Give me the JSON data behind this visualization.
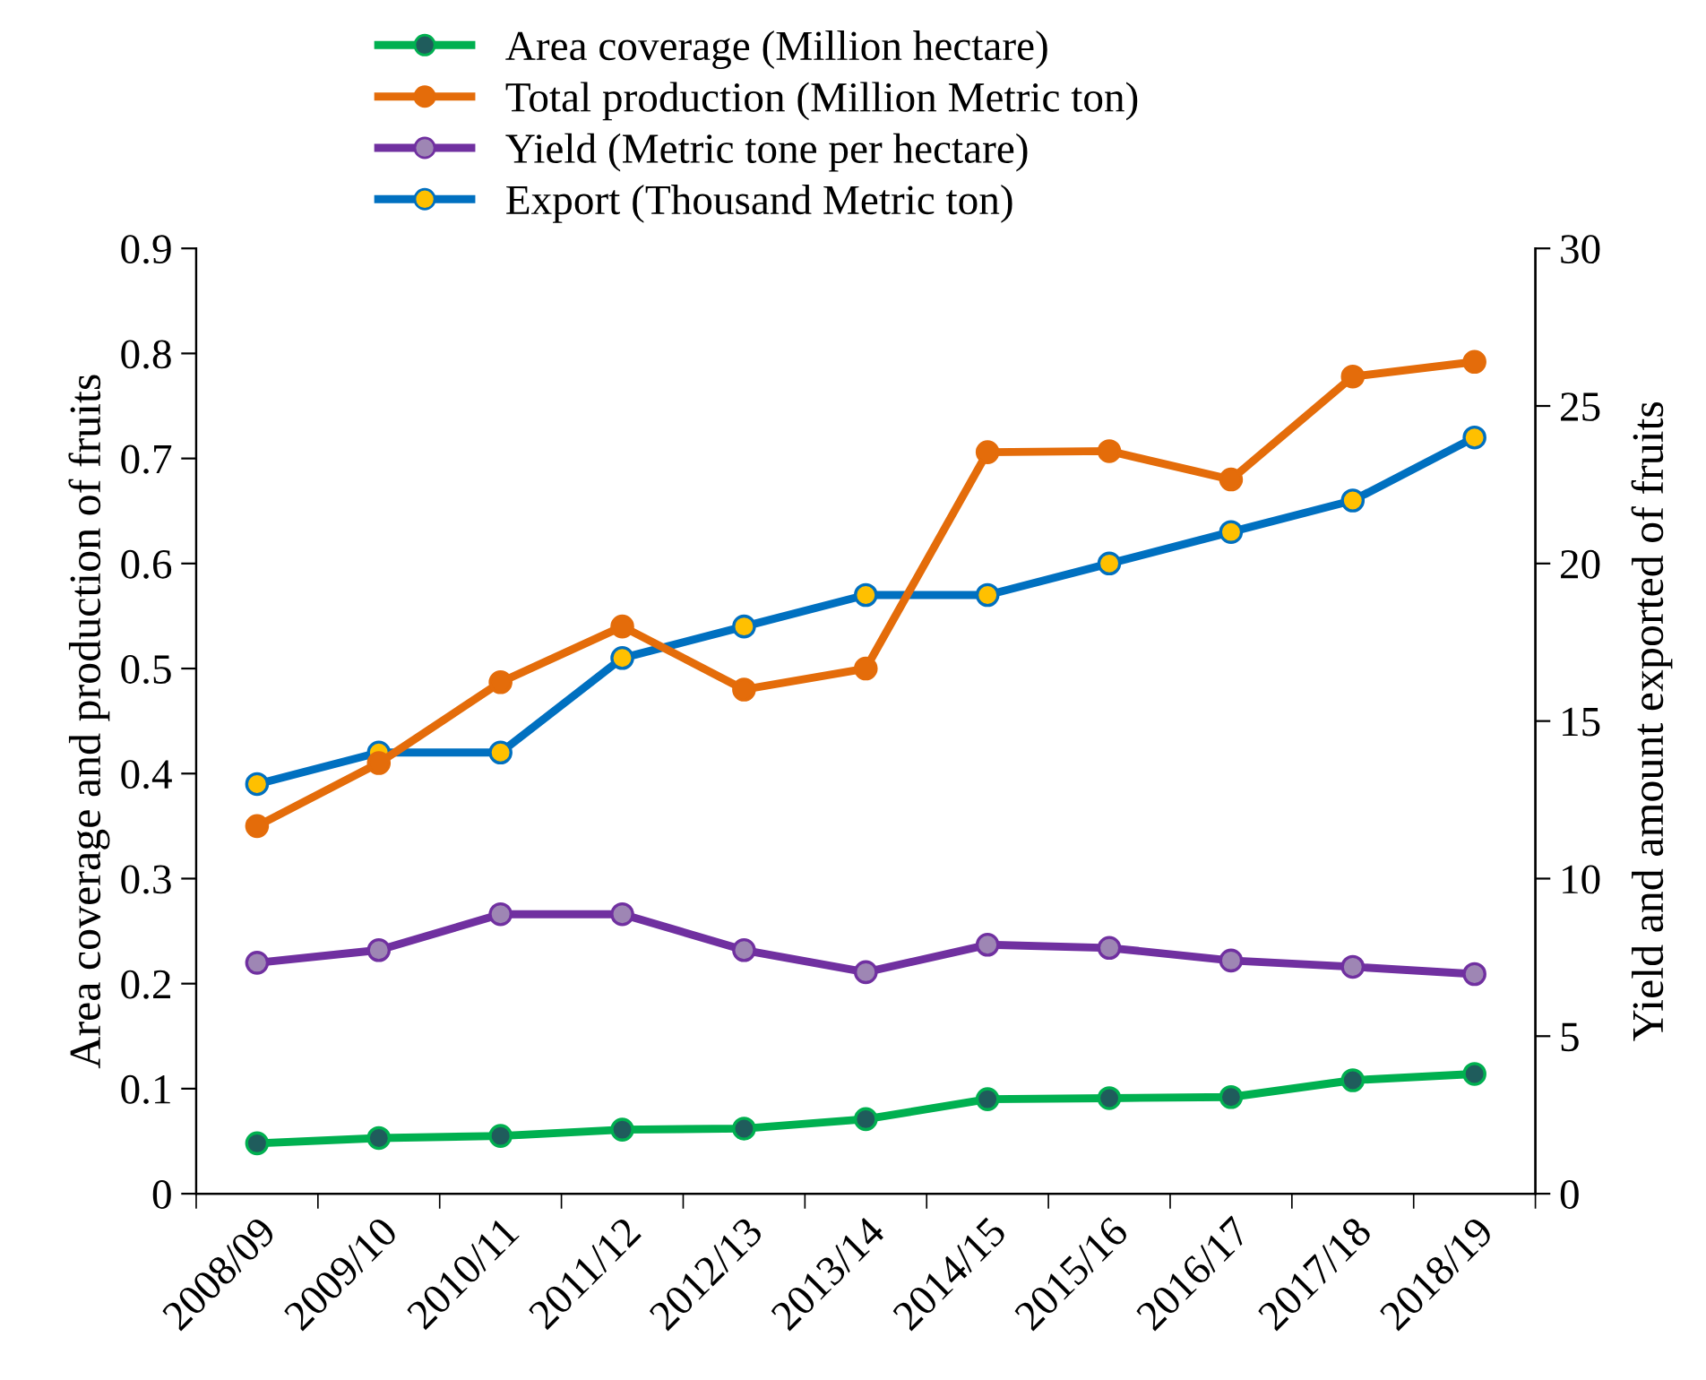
{
  "chart_data": {
    "type": "line",
    "categories": [
      "2008/09",
      "2009/10",
      "2010/11",
      "2011/12",
      "2012/13",
      "2013/14",
      "2014/15",
      "2015/16",
      "2016/17",
      "2017/18",
      "2018/19"
    ],
    "series": [
      {
        "name": "Area coverage (Million hectare)",
        "color": "#00b050",
        "colors": [
          "#1f5c5c",
          "#1f5c5c",
          "#1f5c5c",
          "#1f5c5c",
          "#1f5c5c",
          "#1f5c5c",
          "#1f5c5c",
          "#1f5c5c",
          "#1f5c5c",
          "#1f5c5c",
          "#1f5c5c"
        ],
        "values": [
          0.048,
          0.053,
          0.055,
          0.061,
          0.062,
          0.071,
          0.09,
          0.091,
          0.092,
          0.108,
          0.114
        ]
      },
      {
        "name": "Total production (Million Metric ton)",
        "color": "#e46c0a",
        "values": [
          0.35,
          0.41,
          0.487,
          0.54,
          0.48,
          0.5,
          0.706,
          0.707,
          0.68,
          0.778,
          0.792
        ]
      },
      {
        "name": "Yield (Metric tone per hectare)",
        "color": "#7030a0",
        "colors": [
          "#9e86b4",
          "#9e86b4",
          "#9e86b4",
          "#9e86b4",
          "#9e86b4",
          "#9e86b4",
          "#9e86b4",
          "#9e86b4",
          "#9e86b4",
          "#9e86b4",
          "#9e86b4"
        ],
        "axis": "y2",
        "values": [
          7.33,
          7.73,
          8.87,
          8.87,
          7.73,
          7.03,
          7.9,
          7.8,
          7.4,
          7.2,
          6.97
        ]
      },
      {
        "name": "Export (Thousand Metric ton)",
        "color": "#0070c0",
        "colors": [
          "#ffc000",
          "#ffc000",
          "#ffc000",
          "#ffc000",
          "#ffc000",
          "#ffc000",
          "#ffc000",
          "#ffc000",
          "#ffc000",
          "#ffc000",
          "#ffc000"
        ],
        "axis": "y2",
        "values": [
          13,
          14,
          14,
          17,
          18,
          19,
          19,
          20,
          21,
          22,
          24
        ]
      }
    ],
    "ylabel": "Area coverage and production of fruits",
    "y2label": "Yield and amount exported of fruits",
    "ylim": [
      0,
      0.9
    ],
    "yticks": [
      0,
      0.1,
      0.2,
      0.3,
      0.4,
      0.5,
      0.6,
      0.7,
      0.8,
      0.9
    ],
    "y2lim": [
      0,
      30
    ],
    "y2ticks": [
      0,
      5,
      10,
      15,
      20,
      25,
      30
    ],
    "marker": "circle",
    "line_style": "solid",
    "grid": false,
    "legend": "top"
  }
}
